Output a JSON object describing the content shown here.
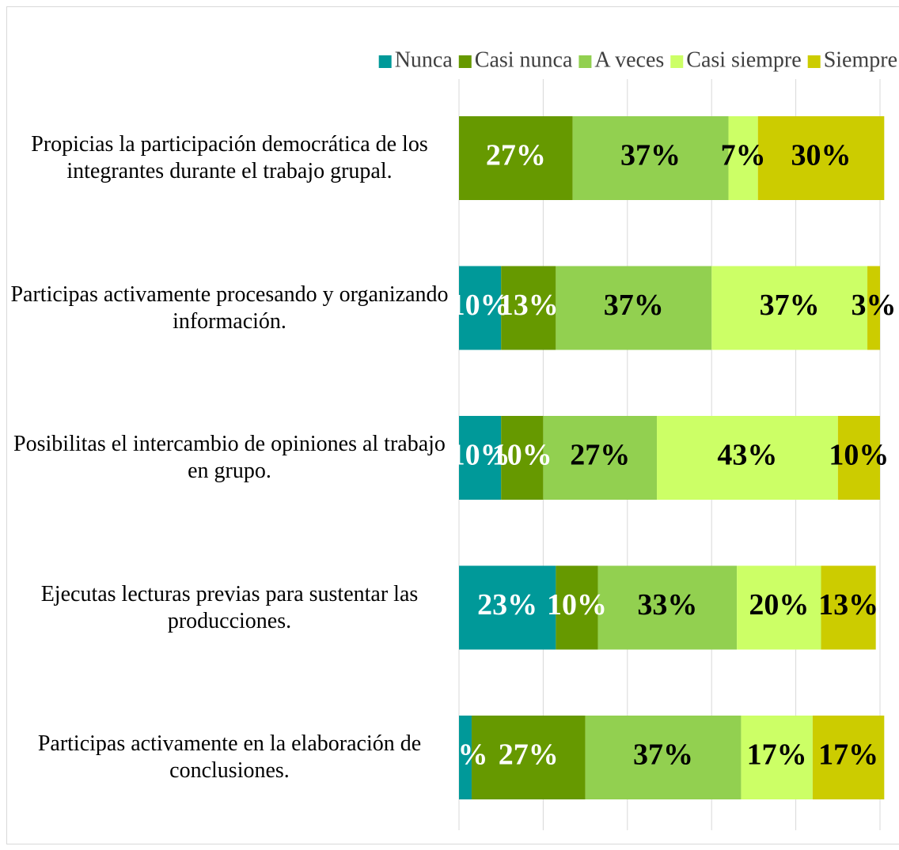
{
  "chart_data": {
    "type": "stacked_bar_horizontal",
    "categories": [
      "Propicias la participación democrática de los integrantes durante el trabajo grupal.",
      "Participas activamente procesando y organizando información.",
      "Posibilitas el intercambio de opiniones al trabajo en grupo.",
      "Ejecutas lecturas previas para sustentar las producciones.",
      "Participas activamente en la elaboración de conclusiones."
    ],
    "series": [
      {
        "name": "Nunca",
        "color": "#009999",
        "values": [
          0,
          10,
          10,
          23,
          3
        ],
        "value_labels": [
          null,
          "10%",
          "10%",
          "23%",
          "3%"
        ]
      },
      {
        "name": "Casi nunca",
        "color": "#669900",
        "values": [
          27,
          13,
          10,
          10,
          27
        ],
        "value_labels": [
          "27%",
          "13%",
          "10%",
          "10%",
          "27%"
        ]
      },
      {
        "name": "A veces",
        "color": "#92d050",
        "values": [
          37,
          37,
          27,
          33,
          37
        ],
        "value_labels": [
          "37%",
          "37%",
          "27%",
          "33%",
          "37%"
        ]
      },
      {
        "name": "Casi siempre",
        "color": "#ccff66",
        "values": [
          7,
          37,
          43,
          20,
          17
        ],
        "value_labels": [
          "7%",
          "37%",
          "43%",
          "20%",
          "17%"
        ]
      },
      {
        "name": "Siempre",
        "color": "#cccc00",
        "values": [
          30,
          3,
          10,
          13,
          17
        ],
        "value_labels": [
          "30%",
          "3%",
          "10%",
          "13%",
          "17%"
        ]
      }
    ],
    "xlim": [
      0,
      100
    ],
    "xticks": [
      0,
      20,
      40,
      60,
      80,
      100
    ],
    "grid": true,
    "legend": "top-right"
  }
}
